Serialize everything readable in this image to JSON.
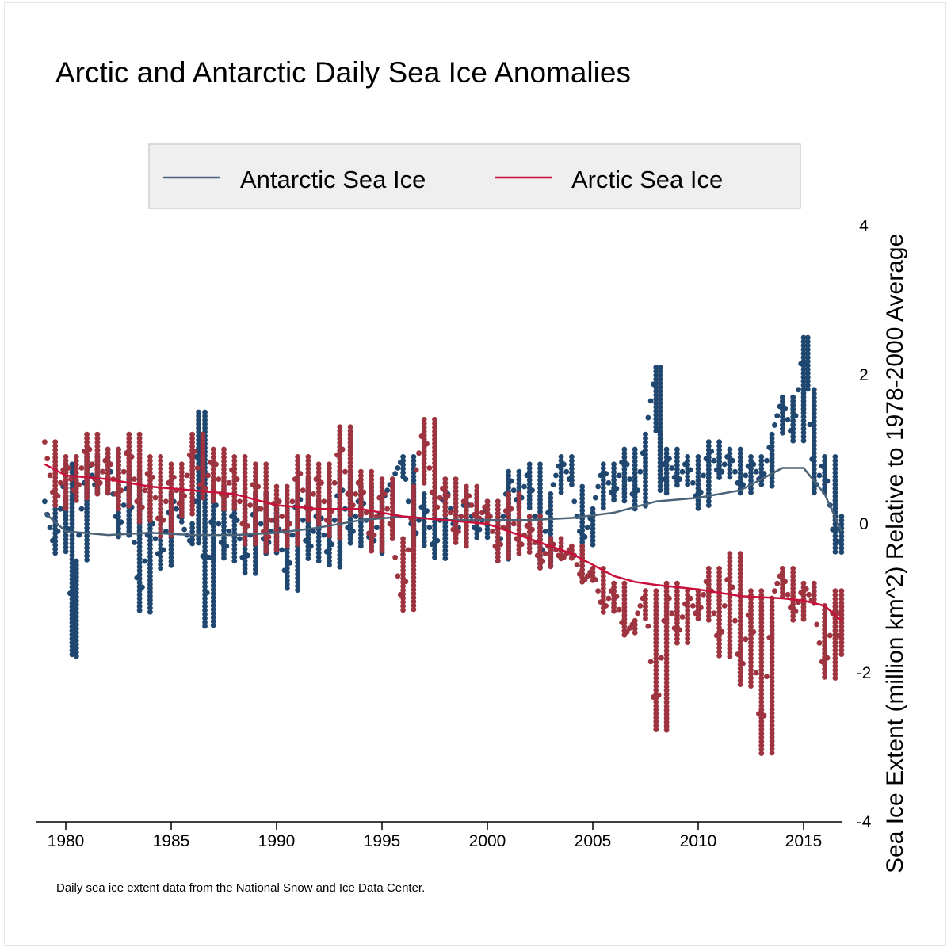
{
  "chart_data": {
    "type": "scatter",
    "title": "Arctic and Antarctic Daily Sea Ice Anomalies",
    "xlabel": "",
    "ylabel": "Sea Ice Extent (million km^2) Relative to 1978-2000 Average",
    "note": "Daily sea ice extent data from the National Snow and Ice Data Center.",
    "xlim": [
      1978.7,
      2017.0
    ],
    "ylim": [
      -4,
      4.6
    ],
    "x_ticks": [
      1980,
      1985,
      1990,
      1995,
      2000,
      2005,
      2010,
      2015
    ],
    "x_tick_labels": [
      "1980",
      "1985",
      "1990",
      "1995",
      "2000",
      "2005",
      "2010",
      "2015"
    ],
    "y_ticks": [
      4,
      2,
      0,
      -2,
      -4
    ],
    "y_tick_labels": [
      "4",
      "2",
      "0",
      "-2",
      "-4"
    ],
    "legend_position": "top",
    "series": [
      {
        "name": "Antarctic Sea Ice",
        "color": "#1f4770",
        "line_color": "#4a6378",
        "x": [
          1979.0,
          1979.5,
          1980.0,
          1980.3,
          1980.5,
          1981.0,
          1981.5,
          1982.0,
          1982.5,
          1983.0,
          1983.5,
          1984.0,
          1984.5,
          1985.0,
          1985.5,
          1986.0,
          1986.3,
          1986.6,
          1987.0,
          1987.5,
          1988.0,
          1988.5,
          1989.0,
          1989.5,
          1990.0,
          1990.5,
          1991.0,
          1991.5,
          1992.0,
          1992.5,
          1993.0,
          1993.5,
          1994.0,
          1994.5,
          1995.0,
          1995.5,
          1996.0,
          1996.5,
          1997.0,
          1997.5,
          1998.0,
          1998.5,
          1999.0,
          1999.5,
          2000.0,
          2000.5,
          2001.0,
          2001.5,
          2002.0,
          2002.5,
          2003.0,
          2003.5,
          2004.0,
          2004.5,
          2005.0,
          2005.5,
          2006.0,
          2006.5,
          2007.0,
          2007.5,
          2008.0,
          2008.2,
          2008.5,
          2009.0,
          2009.5,
          2010.0,
          2010.5,
          2011.0,
          2011.5,
          2012.0,
          2012.5,
          2013.0,
          2013.5,
          2014.0,
          2014.5,
          2015.0,
          2015.2,
          2015.5,
          2016.0,
          2016.5,
          2016.8
        ],
        "values": [
          0.3,
          -0.4,
          0.8,
          -1.8,
          -0.5,
          0.9,
          0.4,
          1.0,
          -0.2,
          0.7,
          -1.2,
          0.2,
          -0.6,
          0.4,
          0.0,
          -0.3,
          1.5,
          -1.4,
          0.5,
          -0.5,
          0.3,
          -0.7,
          0.4,
          -0.4,
          0.2,
          -0.9,
          0.6,
          -0.5,
          0.3,
          -0.6,
          0.7,
          -0.3,
          0.5,
          -0.4,
          0.3,
          0.6,
          0.9,
          -0.3,
          0.4,
          -0.5,
          0.6,
          -0.2,
          0.4,
          -0.2,
          0.3,
          -0.5,
          0.7,
          0.2,
          0.8,
          -0.6,
          0.4,
          0.9,
          0.5,
          -0.3,
          0.2,
          0.8,
          0.3,
          1.0,
          0.2,
          1.2,
          2.1,
          0.4,
          1.0,
          0.5,
          0.9,
          0.2,
          1.1,
          0.6,
          1.0,
          0.4,
          0.9,
          0.5,
          1.2,
          1.7,
          1.1,
          2.5,
          1.8,
          0.4,
          0.9,
          -0.4,
          0.1
        ],
        "trend_x": [
          1979,
          1980,
          1982,
          1984,
          1986,
          1988,
          1990,
          1992,
          1994,
          1996,
          1998,
          2000,
          2002,
          2004,
          2006,
          2008,
          2010,
          2012,
          2013,
          2014,
          2015,
          2016,
          2016.8
        ],
        "trend_values": [
          0.15,
          -0.1,
          -0.15,
          -0.12,
          -0.15,
          -0.15,
          -0.12,
          -0.05,
          0.05,
          0.1,
          0.05,
          0.05,
          0.05,
          0.08,
          0.15,
          0.3,
          0.35,
          0.45,
          0.6,
          0.75,
          0.75,
          0.4,
          -0.1
        ]
      },
      {
        "name": "Arctic Sea Ice",
        "color": "#9e3440",
        "line_color": "#c8103a",
        "x": [
          1979.0,
          1979.5,
          1980.0,
          1980.5,
          1981.0,
          1981.5,
          1982.0,
          1982.5,
          1983.0,
          1983.5,
          1984.0,
          1984.5,
          1985.0,
          1985.5,
          1986.0,
          1986.5,
          1987.0,
          1987.5,
          1988.0,
          1988.5,
          1989.0,
          1989.5,
          1990.0,
          1990.5,
          1991.0,
          1991.5,
          1992.0,
          1992.5,
          1993.0,
          1993.5,
          1994.0,
          1994.5,
          1995.0,
          1995.5,
          1996.0,
          1996.5,
          1997.0,
          1997.5,
          1998.0,
          1998.5,
          1999.0,
          1999.5,
          2000.0,
          2000.5,
          2001.0,
          2001.5,
          2002.0,
          2002.5,
          2003.0,
          2003.5,
          2004.0,
          2004.5,
          2005.0,
          2005.5,
          2006.0,
          2006.5,
          2007.0,
          2007.5,
          2008.0,
          2008.5,
          2009.0,
          2009.5,
          2010.0,
          2010.5,
          2011.0,
          2011.5,
          2012.0,
          2012.5,
          2013.0,
          2013.5,
          2014.0,
          2014.5,
          2015.0,
          2015.5,
          2016.0,
          2016.5,
          2016.8
        ],
        "values": [
          1.1,
          0.2,
          0.9,
          0.3,
          1.2,
          0.4,
          1.0,
          0.2,
          1.2,
          0.0,
          0.9,
          -0.2,
          0.8,
          0.1,
          1.2,
          0.3,
          1.0,
          0.2,
          0.9,
          -0.3,
          0.8,
          -0.4,
          0.5,
          -0.3,
          0.9,
          0.0,
          0.8,
          -0.2,
          1.3,
          0.1,
          0.7,
          -0.4,
          0.6,
          -0.2,
          -1.2,
          0.5,
          1.4,
          0.1,
          0.6,
          -0.3,
          0.5,
          0.0,
          0.3,
          -0.5,
          0.4,
          -0.4,
          0.1,
          -0.6,
          -0.2,
          -0.5,
          -0.3,
          -0.8,
          -0.6,
          -1.2,
          -0.8,
          -1.5,
          -1.3,
          -0.9,
          -2.8,
          -0.8,
          -1.6,
          -0.9,
          -1.3,
          -0.6,
          -1.8,
          -0.4,
          -2.2,
          -0.9,
          -3.1,
          -1.0,
          -0.6,
          -1.3,
          -0.8,
          -1.1,
          -2.1,
          -0.9,
          -1.8
        ],
        "trend_x": [
          1979,
          1980,
          1982,
          1984,
          1986,
          1988,
          1990,
          1992,
          1994,
          1996,
          1998,
          2000,
          2002,
          2004,
          2005,
          2006,
          2007,
          2008,
          2010,
          2012,
          2014,
          2015,
          2016,
          2016.8
        ],
        "trend_values": [
          0.8,
          0.65,
          0.6,
          0.5,
          0.45,
          0.4,
          0.25,
          0.2,
          0.2,
          0.1,
          0.05,
          0.0,
          -0.2,
          -0.4,
          -0.55,
          -0.7,
          -0.78,
          -0.82,
          -0.88,
          -0.97,
          -1.0,
          -1.03,
          -1.1,
          -1.3
        ]
      }
    ]
  }
}
